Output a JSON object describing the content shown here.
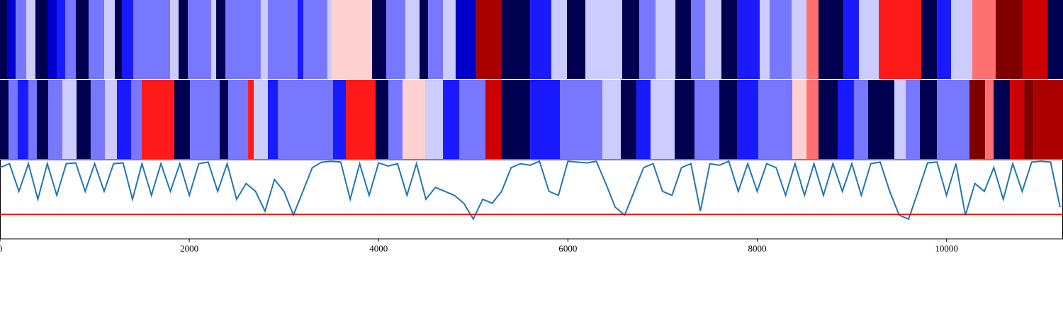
{
  "chart_data": [
    {
      "type": "segments",
      "edges": [
        0,
        75,
        165,
        277,
        374,
        509,
        599,
        689,
        801,
        936,
        1101,
        1213,
        1288,
        1408,
        1797,
        1887,
        1984,
        2231,
        2284,
        2381,
        2755,
        2830,
        3145,
        3205,
        3459,
        3504,
        3931,
        4081,
        4283,
        4433,
        4522,
        4680,
        4814,
        5032,
        5301,
        5601,
        5825,
        5990,
        6185,
        6574,
        6754,
        6926,
        7136,
        7300,
        7450,
        7622,
        7787,
        8027,
        8132,
        8364,
        8521,
        8648,
        8910,
        9075,
        9285,
        9734,
        9899,
        10048,
        10273,
        10520,
        10805,
        11067,
        11231
      ],
      "colors": [
        "#000050",
        "#0000cc",
        "#7777ff",
        "#ccccff",
        "#000050",
        "#0000cc",
        "#1a1aff",
        "#7777ff",
        "#000050",
        "#7777ff",
        "#ccccff",
        "#000050",
        "#1a1aff",
        "#7777ff",
        "#ccccff",
        "#000050",
        "#7777ff",
        "#ccccff",
        "#000050",
        "#7777ff",
        "#ccccff",
        "#7777ff",
        "#1a1aff",
        "#7777ff",
        "#ccccff",
        "#ffd0d0",
        "#000050",
        "#7777ff",
        "#ccccff",
        "#000050",
        "#7777ff",
        "#ccccff",
        "#0000cc",
        "#aa0000",
        "#000050",
        "#1a1aff",
        "#ccccff",
        "#000050",
        "#ccccff",
        "#000050",
        "#7777ff",
        "#ccccff",
        "#000050",
        "#7777ff",
        "#ccccff",
        "#000050",
        "#1a1aff",
        "#ccccff",
        "#7777ff",
        "#ccccff",
        "#ff7070",
        "#000050",
        "#1a1aff",
        "#ccccff",
        "#ff1a1a",
        "#000050",
        "#1a1aff",
        "#ccccff",
        "#ff7070",
        "#800000",
        "#cc0000",
        "#000050"
      ]
    },
    {
      "type": "segments",
      "edges": [
        0,
        90,
        187,
        299,
        389,
        509,
        659,
        809,
        958,
        1108,
        1235,
        1385,
        1497,
        1842,
        2007,
        2321,
        2411,
        2621,
        2681,
        2830,
        2935,
        3519,
        3654,
        3968,
        4103,
        4253,
        4492,
        4680,
        4852,
        5129,
        5301,
        5601,
        5915,
        6364,
        6559,
        6724,
        6874,
        7128,
        7338,
        7600,
        7787,
        8012,
        8371,
        8521,
        8648,
        8850,
        9022,
        9172,
        9449,
        9569,
        9719,
        9899,
        10243,
        10408,
        10498,
        10670,
        10820,
        10917,
        11231
      ],
      "colors": [
        "#000050",
        "#7777ff",
        "#1a1aff",
        "#7777ff",
        "#000050",
        "#7777ff",
        "#ccccff",
        "#000050",
        "#7777ff",
        "#ccccff",
        "#1a1aff",
        "#7777ff",
        "#ff1a1a",
        "#000050",
        "#7777ff",
        "#000050",
        "#7777ff",
        "#ff1a1a",
        "#ccccff",
        "#1a1aff",
        "#7777ff",
        "#1a1aff",
        "#ff1a1a",
        "#000050",
        "#7777ff",
        "#ffd0d0",
        "#ccccff",
        "#1a1aff",
        "#7777ff",
        "#cc0000",
        "#000050",
        "#1a1aff",
        "#7777ff",
        "#ccccff",
        "#000050",
        "#1a1aff",
        "#ccccff",
        "#000050",
        "#7777ff",
        "#000050",
        "#1a1aff",
        "#7777ff",
        "#ffd0d0",
        "#ff7070",
        "#000050",
        "#1a1aff",
        "#7777ff",
        "#000050",
        "#ccccff",
        "#7777ff",
        "#000050",
        "#7777ff",
        "#800000",
        "#ff7070",
        "#000050",
        "#cc0000",
        "#800000",
        "#aa0000"
      ]
    },
    {
      "type": "line",
      "color": "#1f77b4",
      "threshold": 0.31,
      "threshold_color": "#ff0000",
      "xlim": [
        0,
        11231
      ],
      "ylim": [
        0,
        1
      ],
      "xticks": [
        0,
        2000,
        4000,
        6000,
        8000,
        10000
      ],
      "x": [
        0,
        100,
        200,
        300,
        400,
        500,
        600,
        700,
        800,
        900,
        1000,
        1100,
        1200,
        1300,
        1400,
        1500,
        1600,
        1700,
        1800,
        1900,
        2000,
        2100,
        2200,
        2300,
        2400,
        2500,
        2600,
        2700,
        2800,
        2900,
        3000,
        3100,
        3200,
        3300,
        3400,
        3500,
        3600,
        3700,
        3800,
        3900,
        4000,
        4100,
        4200,
        4300,
        4400,
        4500,
        4600,
        4700,
        4800,
        4900,
        5000,
        5100,
        5200,
        5300,
        5400,
        5500,
        5600,
        5700,
        5800,
        5900,
        6000,
        6100,
        6200,
        6300,
        6400,
        6500,
        6600,
        6700,
        6800,
        6900,
        7000,
        7100,
        7200,
        7300,
        7400,
        7500,
        7600,
        7700,
        7800,
        7900,
        8000,
        8100,
        8200,
        8300,
        8400,
        8500,
        8600,
        8700,
        8800,
        8900,
        9000,
        9100,
        9200,
        9300,
        9400,
        9500,
        9600,
        9700,
        9800,
        9900,
        10000,
        10100,
        10200,
        10300,
        10400,
        10500,
        10600,
        10700,
        10800,
        10900,
        11000,
        11100,
        11200
      ],
      "values": [
        0.9,
        0.95,
        0.6,
        0.95,
        0.5,
        0.95,
        0.55,
        0.95,
        0.96,
        0.6,
        0.95,
        0.6,
        0.95,
        0.96,
        0.5,
        0.95,
        0.55,
        0.95,
        0.6,
        0.95,
        0.55,
        0.95,
        0.97,
        0.6,
        0.95,
        0.5,
        0.7,
        0.6,
        0.35,
        0.75,
        0.6,
        0.3,
        0.6,
        0.9,
        0.97,
        0.98,
        0.97,
        0.5,
        0.95,
        0.55,
        0.96,
        0.92,
        0.95,
        0.55,
        0.95,
        0.5,
        0.65,
        0.6,
        0.55,
        0.45,
        0.25,
        0.5,
        0.45,
        0.6,
        0.9,
        0.95,
        0.93,
        0.98,
        0.6,
        0.55,
        0.98,
        0.97,
        0.96,
        0.98,
        0.7,
        0.4,
        0.3,
        0.6,
        0.9,
        0.95,
        0.6,
        0.55,
        0.9,
        0.95,
        0.35,
        0.95,
        0.93,
        0.98,
        0.6,
        0.95,
        0.6,
        0.95,
        0.9,
        0.55,
        0.95,
        0.55,
        0.95,
        0.55,
        0.95,
        0.6,
        0.95,
        0.55,
        0.95,
        0.97,
        0.6,
        0.3,
        0.25,
        0.6,
        0.96,
        0.97,
        0.55,
        0.95,
        0.3,
        0.7,
        0.6,
        0.9,
        0.5,
        0.95,
        0.6,
        0.97,
        0.98,
        0.97,
        0.4
      ]
    }
  ]
}
